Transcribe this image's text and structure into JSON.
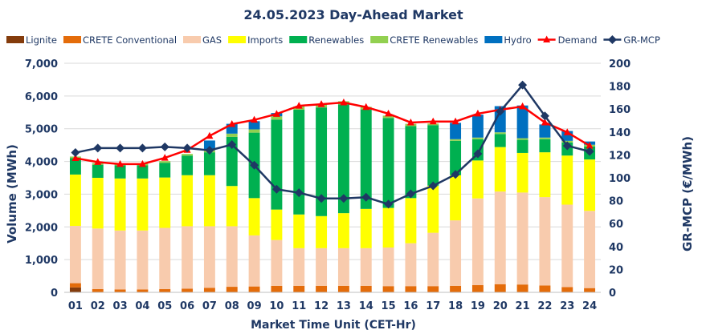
{
  "chart_data": {
    "type": "bar",
    "title": "24.05.2023  Day-Ahead Market",
    "xlabel": "Market Time Unit (CET-Hr)",
    "ylabel": "Volume (MWh)",
    "ylabel_right": "GR-MCP (€/MWh)",
    "ylim": [
      0,
      7000
    ],
    "yticks": [
      "0",
      "1,000",
      "2,000",
      "3,000",
      "4,000",
      "5,000",
      "6,000",
      "7,000"
    ],
    "ylim_right": [
      0,
      200
    ],
    "yticks_right": [
      "0",
      "20",
      "40",
      "60",
      "80",
      "100",
      "120",
      "140",
      "160",
      "180",
      "200"
    ],
    "categories": [
      "01",
      "02",
      "03",
      "04",
      "05",
      "06",
      "07",
      "08",
      "09",
      "10",
      "11",
      "12",
      "13",
      "14",
      "15",
      "16",
      "17",
      "18",
      "19",
      "20",
      "21",
      "22",
      "23",
      "24"
    ],
    "legend_position": "top",
    "grid": true,
    "series": [
      {
        "name": "Lignite",
        "kind": "bar",
        "color": "#843c0c",
        "values": [
          150,
          0,
          0,
          0,
          0,
          0,
          0,
          0,
          0,
          0,
          0,
          0,
          0,
          0,
          0,
          0,
          0,
          0,
          0,
          0,
          0,
          0,
          0,
          0
        ]
      },
      {
        "name": "CRETE Conventional",
        "kind": "bar",
        "color": "#e46c0a",
        "values": [
          130,
          100,
          90,
          90,
          100,
          110,
          140,
          170,
          180,
          200,
          200,
          200,
          200,
          200,
          190,
          190,
          190,
          200,
          220,
          250,
          240,
          210,
          160,
          130
        ]
      },
      {
        "name": "GAS",
        "kind": "bar",
        "color": "#f8cbad",
        "values": [
          1750,
          1850,
          1800,
          1800,
          1870,
          1910,
          1880,
          1850,
          1560,
          1400,
          1150,
          1150,
          1150,
          1150,
          1180,
          1310,
          1630,
          2000,
          2650,
          2830,
          2810,
          2700,
          2520,
          2360
        ]
      },
      {
        "name": "Imports",
        "kind": "bar",
        "color": "#ffff00",
        "values": [
          1570,
          1550,
          1590,
          1590,
          1540,
          1560,
          1560,
          1230,
          1140,
          930,
          1030,
          980,
          1070,
          1200,
          1210,
          1380,
          1440,
          1380,
          1160,
          1360,
          1210,
          1370,
          1500,
          1570
        ]
      },
      {
        "name": "Renewables",
        "kind": "bar",
        "color": "#00b050",
        "values": [
          500,
          400,
          400,
          400,
          450,
          600,
          700,
          1500,
          2000,
          2750,
          3200,
          3320,
          3320,
          3040,
          2750,
          2200,
          1850,
          1050,
          650,
          400,
          400,
          400,
          400,
          400
        ]
      },
      {
        "name": "CRETE Renewables",
        "kind": "bar",
        "color": "#92d050",
        "values": [
          50,
          50,
          50,
          50,
          50,
          50,
          60,
          100,
          100,
          100,
          100,
          100,
          100,
          80,
          70,
          70,
          50,
          50,
          50,
          50,
          50,
          50,
          50,
          50
        ]
      },
      {
        "name": "Hydro",
        "kind": "bar",
        "color": "#0070c0",
        "values": [
          0,
          0,
          0,
          0,
          0,
          0,
          300,
          300,
          250,
          100,
          0,
          0,
          0,
          0,
          0,
          0,
          0,
          500,
          700,
          800,
          1000,
          400,
          300,
          100
        ]
      },
      {
        "name": "Demand",
        "kind": "line",
        "color": "#ff0000",
        "axis": "left",
        "values": [
          4100,
          3980,
          3920,
          3920,
          4110,
          4350,
          4780,
          5140,
          5270,
          5450,
          5700,
          5750,
          5800,
          5660,
          5460,
          5190,
          5220,
          5220,
          5460,
          5580,
          5680,
          5190,
          4890,
          4480
        ]
      },
      {
        "name": "GR-MCP",
        "kind": "line",
        "color": "#1f3864",
        "axis": "right",
        "values": [
          122,
          126,
          126,
          126,
          127,
          126,
          124,
          129,
          111,
          90,
          87,
          82,
          82,
          83,
          77,
          86,
          93,
          103,
          121,
          158,
          181,
          154,
          128,
          123
        ]
      }
    ]
  }
}
